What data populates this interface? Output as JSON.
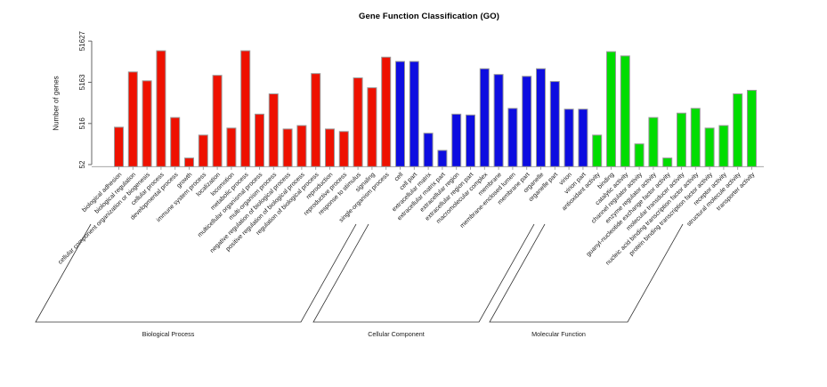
{
  "chart_data": {
    "type": "bar",
    "title": "Gene Function Classification (GO)",
    "xlabel": "",
    "ylabel": "Number of genes",
    "yscale": "log",
    "ylim": [
      52,
      51627
    ],
    "yticks": [
      52,
      516,
      5163,
      51627
    ],
    "ytick_labels": [
      "52",
      "516",
      "5163",
      "51627"
    ],
    "grid": false,
    "legend_position": "none",
    "bar_border_color": "#999999",
    "series": [
      {
        "name": "Biological Process",
        "color": "#ee1100",
        "categories": [
          "biological adhesion",
          "biological regulation",
          "cellular component organization or biogenesis",
          "cellular process",
          "developmental process",
          "growth",
          "immune system process",
          "localization",
          "locomotion",
          "metabolic process",
          "multicellular organismal process",
          "multi-organism process",
          "negative regulation of biological process",
          "positive regulation of biological process",
          "regulation of biological process",
          "reproduction",
          "reproductive process",
          "response to stimulus",
          "signaling",
          "single-organism process"
        ],
        "values": [
          420,
          9200,
          5600,
          30000,
          720,
          75,
          270,
          7600,
          400,
          30000,
          870,
          2700,
          380,
          460,
          8400,
          380,
          330,
          6600,
          3800,
          21000
        ]
      },
      {
        "name": "Cellular Component",
        "color": "#0d0de0",
        "categories": [
          "cell",
          "cell part",
          "extracellular matrix",
          "extracellular matrix part",
          "extracellular region",
          "extracellular region part",
          "macromolecular complex",
          "membrane",
          "membrane-enclosed lumen",
          "membrane part",
          "organelle",
          "organelle part",
          "virion",
          "virion part"
        ],
        "values": [
          16500,
          16500,
          300,
          115,
          870,
          830,
          11000,
          8000,
          1200,
          7200,
          11000,
          5400,
          1150,
          1150
        ]
      },
      {
        "name": "Molecular Function",
        "color": "#00dd00",
        "categories": [
          "antioxidant activity",
          "binding",
          "catalytic activity",
          "channel regulator activity",
          "enzyme regulator activity",
          "guanyl-nucleotide exchange factor activity",
          "molecular transducer activity",
          "nucleic acid binding transcription factor activity",
          "protein binding transcription factor activity",
          "receptor activity",
          "structural molecule activity",
          "transporter activity"
        ],
        "values": [
          270,
          28500,
          22500,
          165,
          720,
          75,
          920,
          1200,
          400,
          460,
          2700,
          3300
        ]
      }
    ]
  }
}
